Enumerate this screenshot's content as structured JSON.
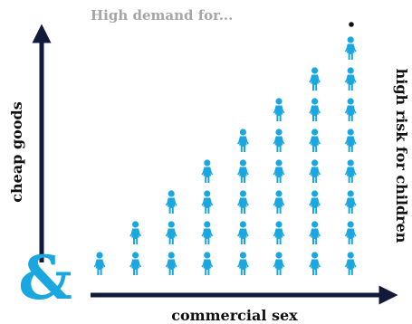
{
  "chart_data": {
    "type": "pictogram",
    "title": "High demand for...",
    "xlabel": "commercial sex",
    "ylabel": "cheap goods",
    "right_label": "high risk for children",
    "ampersand": "&",
    "columns": 8,
    "values": [
      1,
      2,
      3,
      4,
      5,
      6,
      7,
      8
    ],
    "marker": "child-figure-icon",
    "colors": {
      "figure": "#1aa6de",
      "axis": "#111a3a",
      "ampersand": "#1aa6de",
      "title": "#a6a6a6",
      "label": "#111111"
    }
  }
}
